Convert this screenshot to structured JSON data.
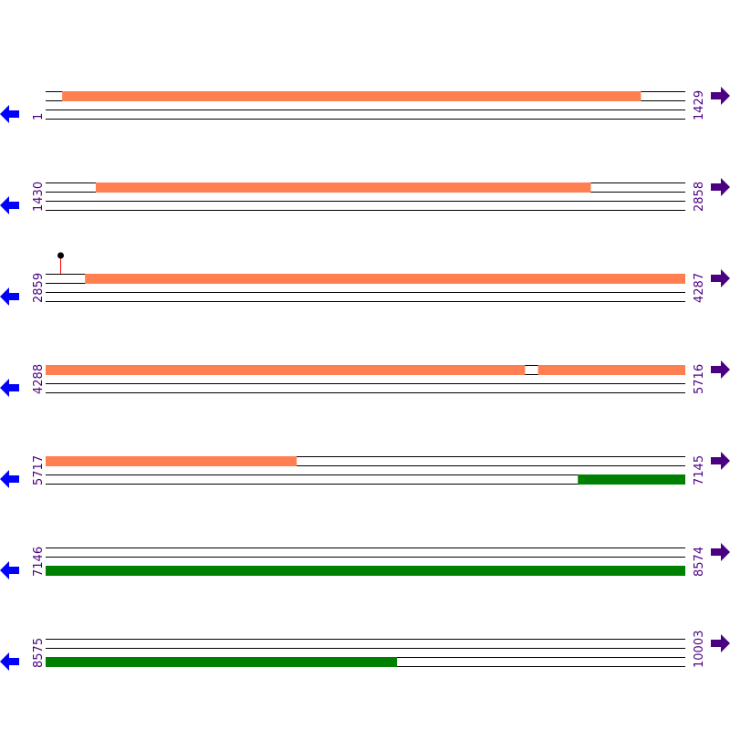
{
  "colors": {
    "frame_a": "#ff7f50",
    "frame_b": "#008000",
    "line": "#000000",
    "left_arrow": "#0000ff",
    "right_arrow": "#4b0082",
    "label": "#4b0082",
    "marker_stem": "#ff0000",
    "marker_head": "#000000"
  },
  "bp_per_row": 1429,
  "rows": [
    {
      "start": "1",
      "end": "1429",
      "start_bp": 1
    },
    {
      "start": "1430",
      "end": "2858",
      "start_bp": 1430
    },
    {
      "start": "2859",
      "end": "4287",
      "start_bp": 2859
    },
    {
      "start": "4288",
      "end": "5716",
      "start_bp": 4288
    },
    {
      "start": "5717",
      "end": "7145",
      "start_bp": 5717
    },
    {
      "start": "7146",
      "end": "8574",
      "start_bp": 7146
    },
    {
      "start": "8575",
      "end": "10003",
      "start_bp": 8575
    }
  ],
  "features": [
    {
      "lane": 0,
      "color": "frame_a",
      "from": 38,
      "to": 1331
    },
    {
      "lane": 0,
      "color": "frame_a",
      "from": 1542,
      "to": 2648
    },
    {
      "lane": 0,
      "color": "frame_a",
      "from": 2947,
      "to": 5359
    },
    {
      "lane": 0,
      "color": "frame_a",
      "from": 5388,
      "to": 6278
    },
    {
      "lane": 2,
      "color": "frame_b",
      "from": 6906,
      "to": 9360
    }
  ],
  "markers": [
    {
      "bp": 2892
    }
  ],
  "icons": {
    "left": "arrow-left-icon",
    "right": "arrow-right-icon"
  }
}
